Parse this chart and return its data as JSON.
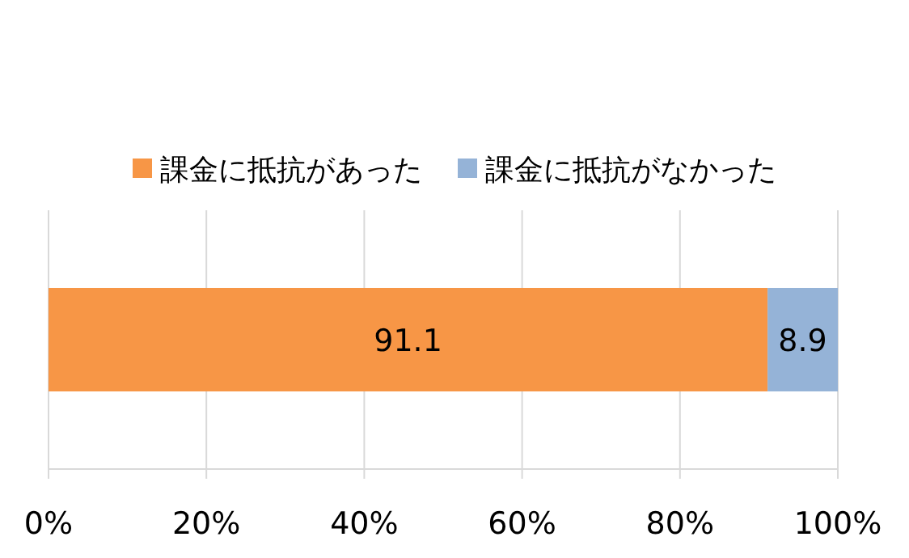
{
  "chart_data": {
    "type": "bar",
    "orientation": "horizontal",
    "stacked": true,
    "categories": [
      null
    ],
    "series": [
      {
        "name": "課金に抵抗があった",
        "color": "#f79646",
        "values": [
          91.1
        ]
      },
      {
        "name": "課金に抵抗がなかった",
        "color": "#95b3d7",
        "values": [
          8.9
        ]
      }
    ],
    "xlim": [
      0,
      100
    ],
    "xticks": [
      {
        "value": 0,
        "label": "0%"
      },
      {
        "value": 20,
        "label": "20%"
      },
      {
        "value": 40,
        "label": "40%"
      },
      {
        "value": 60,
        "label": "60%"
      },
      {
        "value": 80,
        "label": "80%"
      },
      {
        "value": 100,
        "label": "100%"
      }
    ],
    "grid": "x",
    "legend": "top",
    "data_labels": true
  }
}
